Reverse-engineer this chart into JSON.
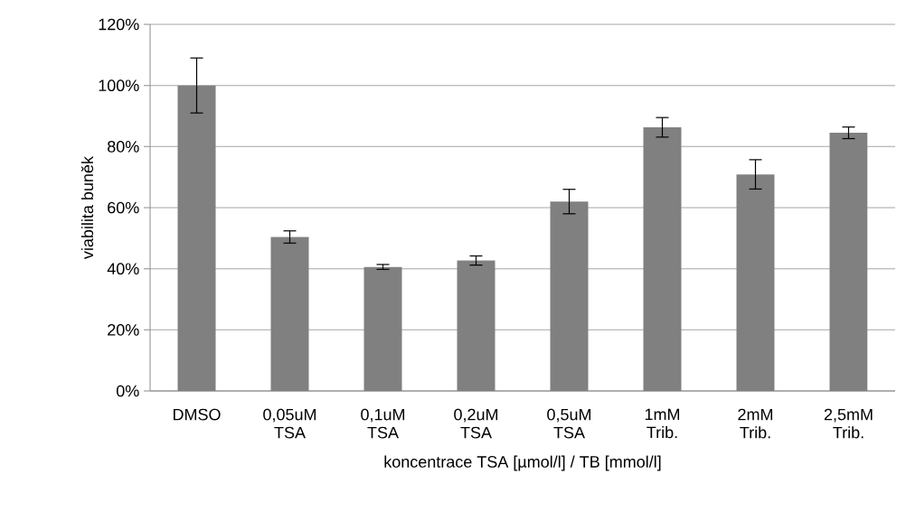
{
  "chart_data": {
    "type": "bar",
    "xlabel": "koncentrace TSA [µmol/l] / TB [mmol/l]",
    "ylabel": "viabilita buněk",
    "categories": [
      "DMSO",
      "0,05uM TSA",
      "0,1uM TSA",
      "0,2uM TSA",
      "0,5uM TSA",
      "1mM Trib.",
      "2mM Trib.",
      "2,5mM Trib."
    ],
    "values": [
      100,
      50.4,
      40.6,
      42.7,
      62.0,
      86.3,
      70.9,
      84.5
    ],
    "errors": [
      9,
      2,
      0.8,
      1.5,
      4,
      3.2,
      4.8,
      1.9
    ],
    "color": "#808080",
    "ylim": [
      0,
      120
    ],
    "yticks": [
      {
        "value": 0,
        "label": "0%"
      },
      {
        "value": 20,
        "label": "20%"
      },
      {
        "value": 40,
        "label": "40%"
      },
      {
        "value": 60,
        "label": "60%"
      },
      {
        "value": 80,
        "label": "80%"
      },
      {
        "value": 100,
        "label": "100%"
      },
      {
        "value": 120,
        "label": "120%"
      }
    ],
    "grid": "y"
  }
}
